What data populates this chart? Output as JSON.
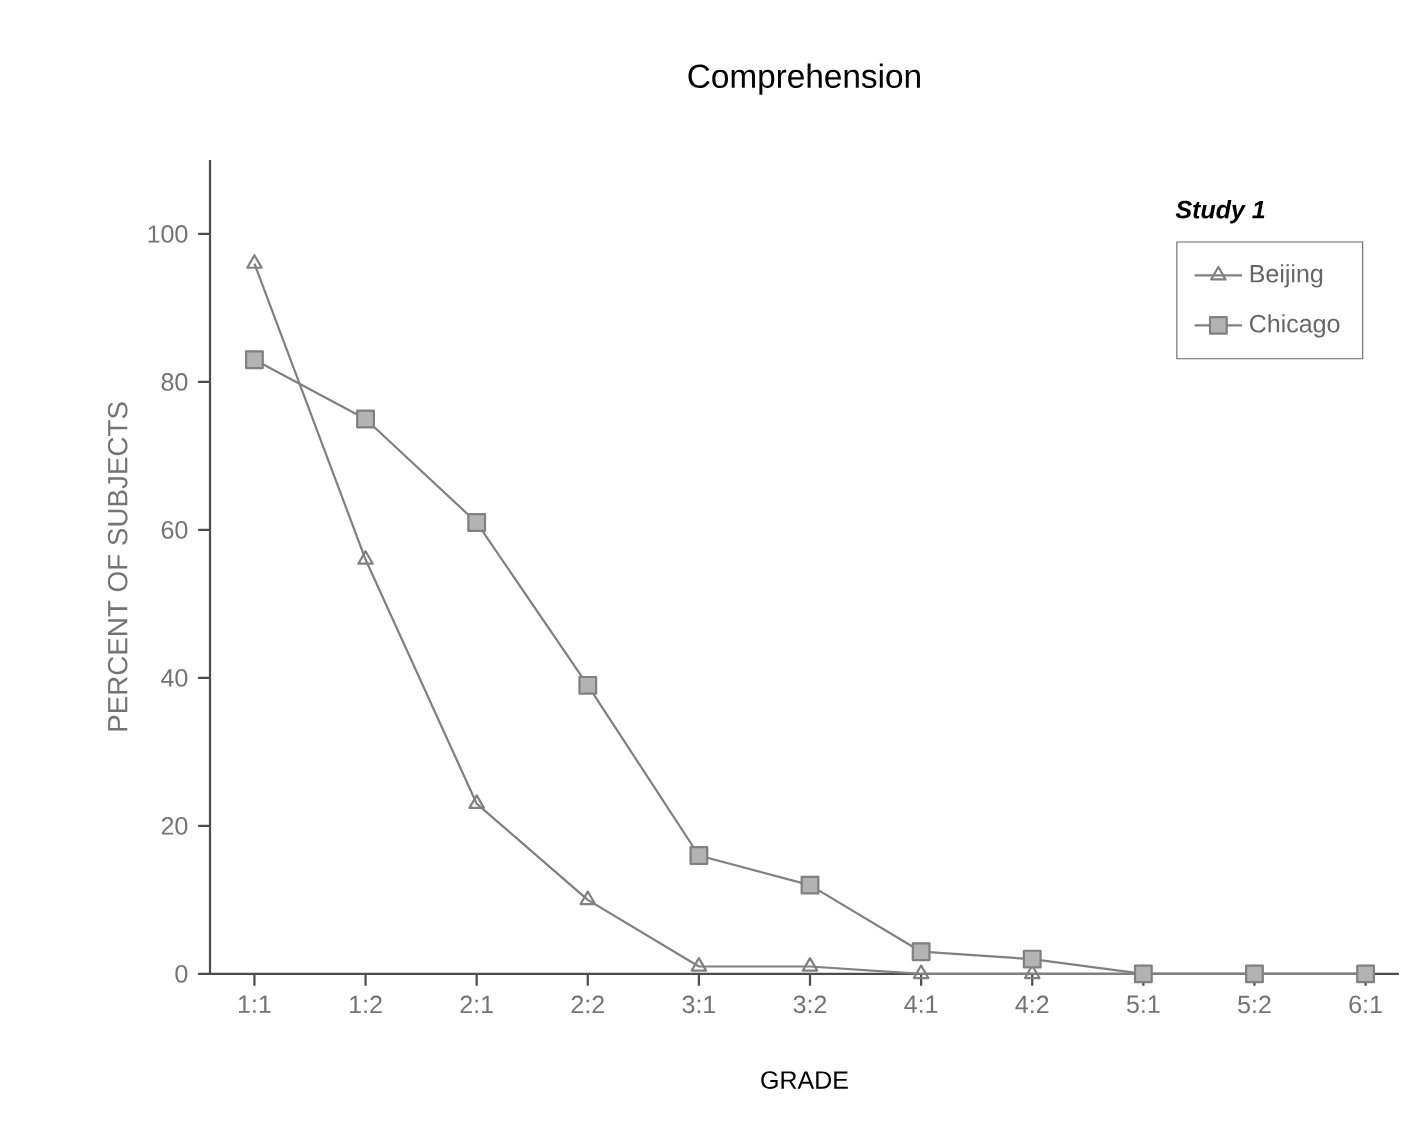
{
  "chart_data": {
    "type": "line",
    "title": "Comprehension",
    "xlabel": "GRADE",
    "ylabel": "PERCENT OF SUBJECTS",
    "legend_title": "Study 1",
    "categories": [
      "1:1",
      "1:2",
      "2:1",
      "2:2",
      "3:1",
      "3:2",
      "4:1",
      "4:2",
      "5:1",
      "5:2",
      "6:1"
    ],
    "series": [
      {
        "name": "Beijing",
        "color": "#808080",
        "marker": "triangle",
        "values": [
          96,
          56,
          23,
          10,
          1,
          1,
          0,
          0,
          0,
          0,
          0
        ]
      },
      {
        "name": "Chicago",
        "color": "#808080",
        "marker": "square",
        "values": [
          83,
          75,
          61,
          39,
          16,
          12,
          3,
          2,
          0,
          0,
          0
        ]
      }
    ],
    "ylim": [
      0,
      110
    ],
    "yticks": [
      0,
      20,
      40,
      60,
      80,
      100
    ],
    "grid": false,
    "legend": "top right",
    "line_style": "solid"
  }
}
